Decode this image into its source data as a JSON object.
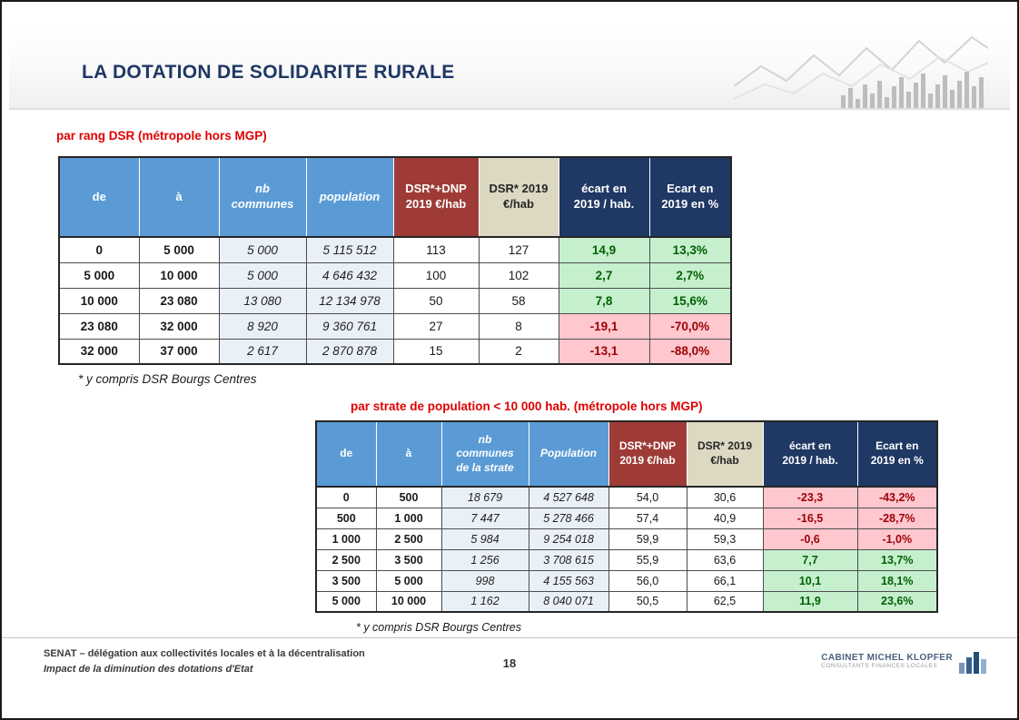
{
  "slide": {
    "title": "LA DOTATION DE SOLIDARITE RURALE",
    "page_number": "18"
  },
  "table1": {
    "caption": "par rang DSR (métropole hors MGP)",
    "footnote": "* y compris DSR Bourgs Centres",
    "headers": [
      "de",
      "à",
      "nb\ncommunes",
      "population",
      "DSR*+DNP\n2019 €/hab",
      "DSR* 2019\n€/hab",
      "écart en\n2019 / hab.",
      "Ecart en\n2019 en %"
    ],
    "header_styles": [
      "blue",
      "blue",
      "blue-italic",
      "blue-italic",
      "darkred",
      "beige",
      "navy",
      "navy"
    ],
    "rows": [
      [
        "0",
        "5 000",
        "5 000",
        "5 115 512",
        "113",
        "127",
        "14,9",
        "13,3%"
      ],
      [
        "5 000",
        "10 000",
        "5 000",
        "4 646 432",
        "100",
        "102",
        "2,7",
        "2,7%"
      ],
      [
        "10 000",
        "23 080",
        "13 080",
        "12 134 978",
        "50",
        "58",
        "7,8",
        "15,6%"
      ],
      [
        "23 080",
        "32 000",
        "8 920",
        "9 360 761",
        "27",
        "8",
        "-19,1",
        "-70,0%"
      ],
      [
        "32 000",
        "37 000",
        "2 617",
        "2 870 878",
        "15",
        "2",
        "-13,1",
        "-88,0%"
      ]
    ]
  },
  "table2": {
    "caption": "par strate de population < 10 000 hab. (métropole hors MGP)",
    "footnote": "* y compris DSR Bourgs Centres",
    "headers": [
      "de",
      "à",
      "nb\ncommunes\nde la strate",
      "Population",
      "DSR*+DNP\n2019 €/hab",
      "DSR* 2019\n€/hab",
      "écart en\n2019 / hab.",
      "Ecart en\n2019 en %"
    ],
    "header_styles": [
      "blue",
      "blue",
      "blue-italic",
      "blue-italic",
      "darkred",
      "beige",
      "navy",
      "navy"
    ],
    "rows": [
      [
        "0",
        "500",
        "18 679",
        "4 527 648",
        "54,0",
        "30,6",
        "-23,3",
        "-43,2%"
      ],
      [
        "500",
        "1 000",
        "7 447",
        "5 278 466",
        "57,4",
        "40,9",
        "-16,5",
        "-28,7%"
      ],
      [
        "1 000",
        "2 500",
        "5 984",
        "9 254 018",
        "59,9",
        "59,3",
        "-0,6",
        "-1,0%"
      ],
      [
        "2 500",
        "3 500",
        "1 256",
        "3 708 615",
        "55,9",
        "63,6",
        "7,7",
        "13,7%"
      ],
      [
        "3 500",
        "5 000",
        "998",
        "4 155 563",
        "56,0",
        "66,1",
        "10,1",
        "18,1%"
      ],
      [
        "5 000",
        "10 000",
        "1 162",
        "8 040 071",
        "50,5",
        "62,5",
        "11,9",
        "23,6%"
      ]
    ]
  },
  "footer": {
    "org_line1": "SENAT – délégation aux collectivités locales et à la décentralisation",
    "org_line2": "Impact de la diminution des dotations d'Etat",
    "logo_name": "CABINET MICHEL KLOPFER",
    "logo_subtitle": "CONSULTANTS FINANCES LOCALES"
  },
  "colors": {
    "title_navy": "#1f3864",
    "caption_red": "#e00000",
    "header_blue": "#5b9bd5",
    "header_darkred": "#9e3b36",
    "header_beige": "#ddd8c2",
    "header_navy": "#1f3864",
    "positive_bg": "#c6efce",
    "positive_text": "#006100",
    "negative_bg": "#ffc7ce",
    "negative_text": "#9c0006"
  }
}
